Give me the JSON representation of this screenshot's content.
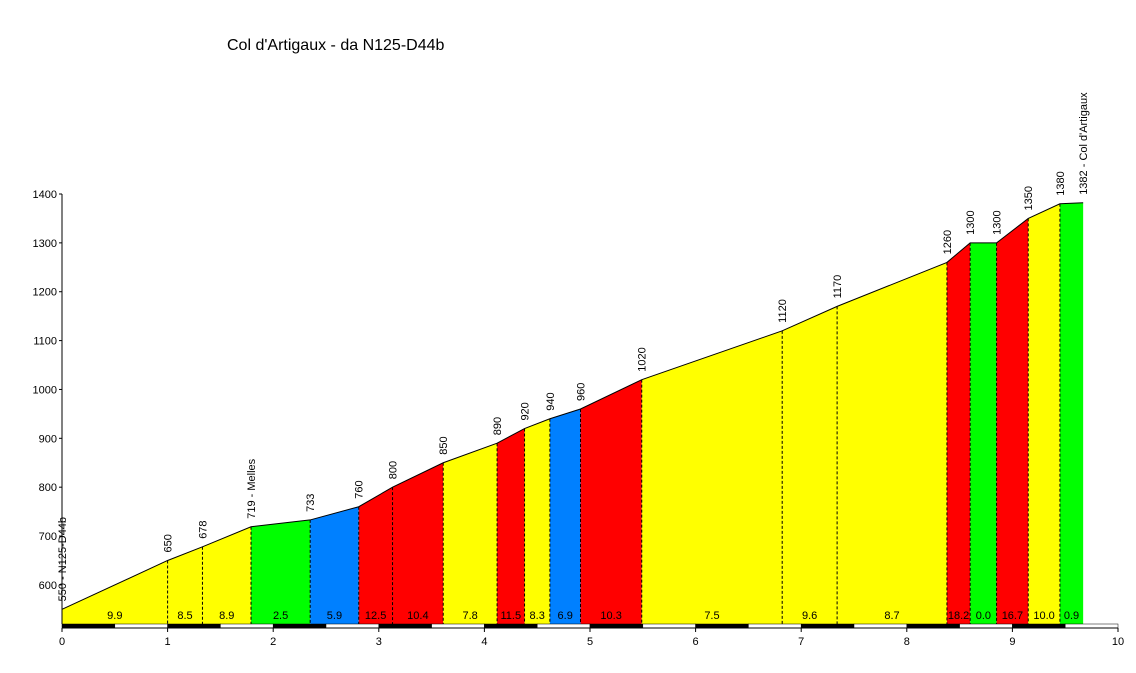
{
  "chart_data": {
    "type": "area",
    "title": "Col d'Artigaux - da N125-D44b",
    "xlabel": "",
    "ylabel": "",
    "xlim": [
      0,
      10
    ],
    "ylim": [
      520,
      1400
    ],
    "x_ticks": [
      "0",
      "1",
      "2",
      "3",
      "4",
      "5",
      "6",
      "7",
      "8",
      "9",
      "10"
    ],
    "y_ticks": [
      "600",
      "700",
      "800",
      "900",
      "1000",
      "1100",
      "1200",
      "1300",
      "1400"
    ],
    "points": [
      {
        "x": 0.0,
        "y": 550,
        "label": "550 - N125-D44b"
      },
      {
        "x": 1.0,
        "y": 650,
        "label": "650"
      },
      {
        "x": 1.33,
        "y": 678,
        "label": "678"
      },
      {
        "x": 1.79,
        "y": 719,
        "label": "719 - Melles"
      },
      {
        "x": 2.35,
        "y": 733,
        "label": "733"
      },
      {
        "x": 2.81,
        "y": 760,
        "label": "760"
      },
      {
        "x": 3.13,
        "y": 800,
        "label": "800"
      },
      {
        "x": 3.61,
        "y": 850,
        "label": "850"
      },
      {
        "x": 4.12,
        "y": 890,
        "label": "890"
      },
      {
        "x": 4.38,
        "y": 920,
        "label": "920"
      },
      {
        "x": 4.62,
        "y": 940,
        "label": "940"
      },
      {
        "x": 4.91,
        "y": 960,
        "label": "960"
      },
      {
        "x": 5.49,
        "y": 1020,
        "label": "1020"
      },
      {
        "x": 6.82,
        "y": 1120,
        "label": "1120"
      },
      {
        "x": 7.34,
        "y": 1170,
        "label": "1170"
      },
      {
        "x": 8.38,
        "y": 1260,
        "label": "1260"
      },
      {
        "x": 8.6,
        "y": 1300,
        "label": "1300"
      },
      {
        "x": 8.85,
        "y": 1300,
        "label": "1300"
      },
      {
        "x": 9.15,
        "y": 1350,
        "label": "1350"
      },
      {
        "x": 9.45,
        "y": 1380,
        "label": "1380"
      },
      {
        "x": 9.67,
        "y": 1382,
        "label": "1382 - Col d'Artigaux"
      }
    ],
    "segments": [
      {
        "gradient": "9.9",
        "color": "#ffff00"
      },
      {
        "gradient": "8.5",
        "color": "#ffff00"
      },
      {
        "gradient": "8.9",
        "color": "#ffff00"
      },
      {
        "gradient": "2.5",
        "color": "#00ff00"
      },
      {
        "gradient": "5.9",
        "color": "#0080ff"
      },
      {
        "gradient": "12.5",
        "color": "#ff0000"
      },
      {
        "gradient": "10.4",
        "color": "#ff0000"
      },
      {
        "gradient": "7.8",
        "color": "#ffff00"
      },
      {
        "gradient": "11.5",
        "color": "#ff0000"
      },
      {
        "gradient": "8.3",
        "color": "#ffff00"
      },
      {
        "gradient": "6.9",
        "color": "#0080ff"
      },
      {
        "gradient": "10.3",
        "color": "#ff0000"
      },
      {
        "gradient": "7.5",
        "color": "#ffff00"
      },
      {
        "gradient": "9.6",
        "color": "#ffff00"
      },
      {
        "gradient": "8.7",
        "color": "#ffff00"
      },
      {
        "gradient": "18.2",
        "color": "#ff0000"
      },
      {
        "gradient": "0.0",
        "color": "#00ff00"
      },
      {
        "gradient": "16.7",
        "color": "#ff0000"
      },
      {
        "gradient": "10.0",
        "color": "#ffff00"
      },
      {
        "gradient": "0.9",
        "color": "#00ff00"
      }
    ]
  }
}
